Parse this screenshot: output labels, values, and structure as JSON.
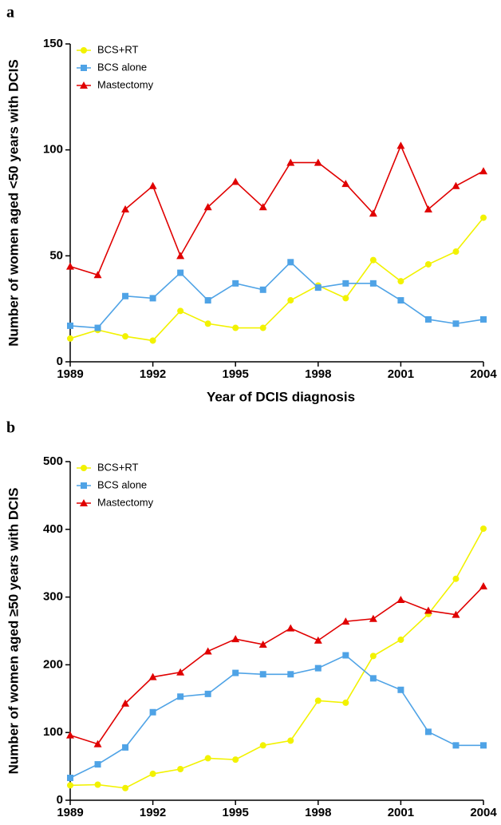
{
  "chart_data": [
    {
      "type": "line",
      "panel": "a",
      "x_label": "Year of DCIS diagnosis",
      "y_label": "Number of women aged <50 years with DCIS",
      "x": [
        1989,
        1990,
        1991,
        1992,
        1993,
        1994,
        1995,
        1996,
        1997,
        1998,
        1999,
        2000,
        2001,
        2002,
        2003,
        2004
      ],
      "xlim": [
        1989,
        2004
      ],
      "xticks": [
        1989,
        1992,
        1995,
        1998,
        2001,
        2004
      ],
      "ylim": [
        0,
        150
      ],
      "yticks": [
        0,
        50,
        100,
        150
      ],
      "legend": "upper left",
      "series": [
        {
          "name": "BCS+RT",
          "color": "#f2f200",
          "marker": "circle",
          "values": [
            11,
            15,
            12,
            10,
            24,
            18,
            16,
            16,
            29,
            36,
            30,
            48,
            38,
            46,
            52,
            68
          ]
        },
        {
          "name": "BCS alone",
          "color": "#4fa3e6",
          "marker": "square",
          "values": [
            17,
            16,
            31,
            30,
            42,
            29,
            37,
            34,
            47,
            35,
            37,
            37,
            29,
            20,
            18,
            20
          ]
        },
        {
          "name": "Mastectomy",
          "color": "#e00000",
          "marker": "triangle",
          "values": [
            45,
            41,
            72,
            83,
            50,
            73,
            85,
            73,
            94,
            94,
            84,
            70,
            102,
            72,
            83,
            90
          ]
        }
      ]
    },
    {
      "type": "line",
      "panel": "b",
      "x_label": "Year of DCIS diagnosis",
      "y_label": "Number of women aged ≥50 years with DCIS",
      "x": [
        1989,
        1990,
        1991,
        1992,
        1993,
        1994,
        1995,
        1996,
        1997,
        1998,
        1999,
        2000,
        2001,
        2002,
        2003,
        2004
      ],
      "xlim": [
        1989,
        2004
      ],
      "xticks": [
        1989,
        1992,
        1995,
        1998,
        2001,
        2004
      ],
      "ylim": [
        0,
        500
      ],
      "yticks": [
        0,
        100,
        200,
        300,
        400,
        500
      ],
      "legend": "upper left",
      "series": [
        {
          "name": "BCS+RT",
          "color": "#f2f200",
          "marker": "circle",
          "values": [
            22,
            23,
            18,
            39,
            46,
            62,
            60,
            81,
            88,
            147,
            144,
            213,
            237,
            275,
            327,
            401
          ]
        },
        {
          "name": "BCS alone",
          "color": "#4fa3e6",
          "marker": "square",
          "values": [
            33,
            53,
            78,
            130,
            153,
            157,
            188,
            186,
            186,
            195,
            214,
            180,
            163,
            101,
            81,
            81
          ]
        },
        {
          "name": "Mastectomy",
          "color": "#e00000",
          "marker": "triangle",
          "values": [
            96,
            83,
            143,
            182,
            189,
            220,
            238,
            230,
            254,
            236,
            264,
            268,
            296,
            280,
            274,
            316
          ]
        }
      ]
    }
  ]
}
